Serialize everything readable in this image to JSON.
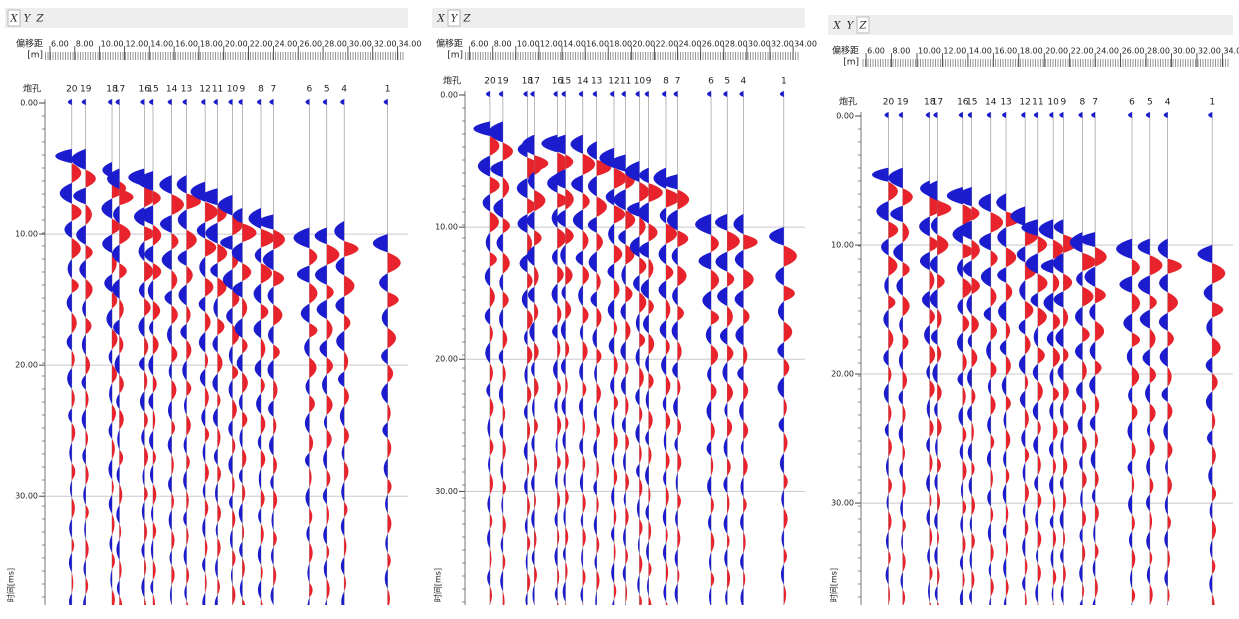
{
  "panels": [
    {
      "tabs": [
        "X",
        "Y",
        "Z"
      ],
      "active_tab": 0,
      "x_label": "偏移距",
      "x_unit": "[m]",
      "trace_header": "炮孔",
      "y_label": "时间[ms]",
      "xlim": [
        5.6,
        34.6
      ],
      "xticks": [
        {
          "value": 6,
          "label": "6.00"
        },
        {
          "value": 8,
          "label": "8.00"
        },
        {
          "value": 10,
          "label": "10.00"
        },
        {
          "value": 12,
          "label": "12.00"
        },
        {
          "value": 14,
          "label": "14.00"
        },
        {
          "value": 16,
          "label": "16.00"
        },
        {
          "value": 18,
          "label": "18.00"
        },
        {
          "value": 20,
          "label": "20.00"
        },
        {
          "value": 22,
          "label": "22.00"
        },
        {
          "value": 24,
          "label": "24.00"
        },
        {
          "value": 26,
          "label": "26.00"
        },
        {
          "value": 28,
          "label": "28.00"
        },
        {
          "value": 30,
          "label": "30.00"
        },
        {
          "value": 32,
          "label": "32.00"
        },
        {
          "value": 34,
          "label": "34.00"
        }
      ],
      "ylim": [
        0,
        38.3
      ],
      "yticks": [
        {
          "value": 0,
          "label": "0.00"
        },
        {
          "value": 10,
          "label": "10.00"
        },
        {
          "value": 20,
          "label": "20.00"
        },
        {
          "value": 30,
          "label": "30.00"
        }
      ],
      "grid": true,
      "colors": {
        "positive": "#e8232b",
        "negative": "#1c1ccf"
      },
      "traces": [
        {
          "label": "20",
          "offset": 7.76,
          "first_arrival": 3.5
        },
        {
          "label": "19",
          "offset": 8.88,
          "first_arrival": 3.5
        },
        {
          "label": "18",
          "offset": 11.0,
          "first_arrival": 4.5
        },
        {
          "label": "17",
          "offset": 11.6,
          "first_arrival": 5
        },
        {
          "label": "16",
          "offset": 13.6,
          "first_arrival": 5
        },
        {
          "label": "15",
          "offset": 14.3,
          "first_arrival": 5.2
        },
        {
          "label": "14",
          "offset": 15.8,
          "first_arrival": 5.5
        },
        {
          "label": "13",
          "offset": 17.0,
          "first_arrival": 5.5
        },
        {
          "label": "12",
          "offset": 18.5,
          "first_arrival": 6
        },
        {
          "label": "11",
          "offset": 19.5,
          "first_arrival": 6.5
        },
        {
          "label": "10",
          "offset": 20.7,
          "first_arrival": 7
        },
        {
          "label": "9",
          "offset": 21.5,
          "first_arrival": 8
        },
        {
          "label": "8",
          "offset": 23.0,
          "first_arrival": 8
        },
        {
          "label": "7",
          "offset": 24.0,
          "first_arrival": 8.5
        },
        {
          "label": "6",
          "offset": 26.9,
          "first_arrival": 9.5
        },
        {
          "label": "5",
          "offset": 28.3,
          "first_arrival": 9.5
        },
        {
          "label": "4",
          "offset": 29.7,
          "first_arrival": 9
        },
        {
          "label": "1",
          "offset": 33.2,
          "first_arrival": 10
        }
      ]
    },
    {
      "tabs": [
        "X",
        "Y",
        "Z"
      ],
      "active_tab": 1,
      "x_label": "偏移距",
      "x_unit": "[m]",
      "trace_header": "炮孔",
      "y_label": "时间[ms]",
      "xlim": [
        5.6,
        34.6
      ],
      "xticks": [
        {
          "value": 6,
          "label": "6.00"
        },
        {
          "value": 8,
          "label": "8.00"
        },
        {
          "value": 10,
          "label": "10.00"
        },
        {
          "value": 12,
          "label": "12.00"
        },
        {
          "value": 14,
          "label": "14.00"
        },
        {
          "value": 16,
          "label": "16.00"
        },
        {
          "value": 18,
          "label": "18.00"
        },
        {
          "value": 20,
          "label": "20.00"
        },
        {
          "value": 22,
          "label": "22.00"
        },
        {
          "value": 24,
          "label": "24.00"
        },
        {
          "value": 26,
          "label": "26.00"
        },
        {
          "value": 28,
          "label": "28.00"
        },
        {
          "value": 30,
          "label": "30.00"
        },
        {
          "value": 32,
          "label": "32.00"
        },
        {
          "value": 34,
          "label": "34.00"
        }
      ],
      "ylim": [
        0,
        38.6
      ],
      "yticks": [
        {
          "value": 0,
          "label": "0.00"
        },
        {
          "value": 10,
          "label": "10.00"
        },
        {
          "value": 20,
          "label": "20.00"
        },
        {
          "value": 30,
          "label": "30.00"
        }
      ],
      "grid": true,
      "colors": {
        "positive": "#e8232b",
        "negative": "#1c1ccf"
      },
      "traces": [
        {
          "label": "20",
          "offset": 7.76,
          "first_arrival": 2
        },
        {
          "label": "19",
          "offset": 8.88,
          "first_arrival": 2
        },
        {
          "label": "18",
          "offset": 11.0,
          "first_arrival": 3.5
        },
        {
          "label": "17",
          "offset": 11.6,
          "first_arrival": 3
        },
        {
          "label": "16",
          "offset": 13.6,
          "first_arrival": 3
        },
        {
          "label": "15",
          "offset": 14.3,
          "first_arrival": 3
        },
        {
          "label": "14",
          "offset": 15.8,
          "first_arrival": 3
        },
        {
          "label": "13",
          "offset": 17.0,
          "first_arrival": 3.5
        },
        {
          "label": "12",
          "offset": 18.5,
          "first_arrival": 4
        },
        {
          "label": "11",
          "offset": 19.5,
          "first_arrival": 4.5
        },
        {
          "label": "10",
          "offset": 20.7,
          "first_arrival": 5
        },
        {
          "label": "9",
          "offset": 21.5,
          "first_arrival": 5.5
        },
        {
          "label": "8",
          "offset": 23.0,
          "first_arrival": 5.5
        },
        {
          "label": "7",
          "offset": 24.0,
          "first_arrival": 6
        },
        {
          "label": "6",
          "offset": 26.9,
          "first_arrival": 9
        },
        {
          "label": "5",
          "offset": 28.3,
          "first_arrival": 9
        },
        {
          "label": "4",
          "offset": 29.7,
          "first_arrival": 9
        },
        {
          "label": "1",
          "offset": 33.2,
          "first_arrival": 10
        }
      ]
    },
    {
      "tabs": [
        "X",
        "Y",
        "Z"
      ],
      "active_tab": 2,
      "x_label": "偏移距",
      "x_unit": "[m]",
      "trace_header": "炮孔",
      "y_label": "时间[ms]",
      "xlim": [
        5.6,
        34.6
      ],
      "xticks": [
        {
          "value": 6,
          "label": "6.00"
        },
        {
          "value": 8,
          "label": "8.00"
        },
        {
          "value": 10,
          "label": "10.00"
        },
        {
          "value": 12,
          "label": "12.00"
        },
        {
          "value": 14,
          "label": "14.00"
        },
        {
          "value": 16,
          "label": "16.00"
        },
        {
          "value": 18,
          "label": "18.00"
        },
        {
          "value": 20,
          "label": "20.00"
        },
        {
          "value": 22,
          "label": "22.00"
        },
        {
          "value": 24,
          "label": "24.00"
        },
        {
          "value": 26,
          "label": "26.00"
        },
        {
          "value": 28,
          "label": "28.00"
        },
        {
          "value": 30,
          "label": "30.00"
        },
        {
          "value": 32,
          "label": "32.00"
        },
        {
          "value": 34,
          "label": "34.00"
        }
      ],
      "ylim": [
        0,
        37.9
      ],
      "yticks": [
        {
          "value": 0,
          "label": "0.00"
        },
        {
          "value": 10,
          "label": "10.00"
        },
        {
          "value": 20,
          "label": "20.00"
        },
        {
          "value": 30,
          "label": "30.00"
        }
      ],
      "grid": true,
      "colors": {
        "positive": "#e8232b",
        "negative": "#1c1ccf"
      },
      "traces": [
        {
          "label": "20",
          "offset": 7.76,
          "first_arrival": 4
        },
        {
          "label": "19",
          "offset": 8.88,
          "first_arrival": 4
        },
        {
          "label": "18",
          "offset": 11.0,
          "first_arrival": 5
        },
        {
          "label": "17",
          "offset": 11.6,
          "first_arrival": 5
        },
        {
          "label": "16",
          "offset": 13.6,
          "first_arrival": 5.5
        },
        {
          "label": "15",
          "offset": 14.3,
          "first_arrival": 5.5
        },
        {
          "label": "14",
          "offset": 15.8,
          "first_arrival": 6
        },
        {
          "label": "13",
          "offset": 17.0,
          "first_arrival": 6
        },
        {
          "label": "12",
          "offset": 18.5,
          "first_arrival": 7
        },
        {
          "label": "11",
          "offset": 19.5,
          "first_arrival": 8
        },
        {
          "label": "10",
          "offset": 20.7,
          "first_arrival": 8
        },
        {
          "label": "9",
          "offset": 21.5,
          "first_arrival": 8
        },
        {
          "label": "8",
          "offset": 23.0,
          "first_arrival": 9
        },
        {
          "label": "7",
          "offset": 24.0,
          "first_arrival": 9
        },
        {
          "label": "6",
          "offset": 26.9,
          "first_arrival": 9.5
        },
        {
          "label": "5",
          "offset": 28.3,
          "first_arrival": 9.5
        },
        {
          "label": "4",
          "offset": 29.7,
          "first_arrival": 9.5
        },
        {
          "label": "1",
          "offset": 33.2,
          "first_arrival": 10
        }
      ]
    }
  ]
}
